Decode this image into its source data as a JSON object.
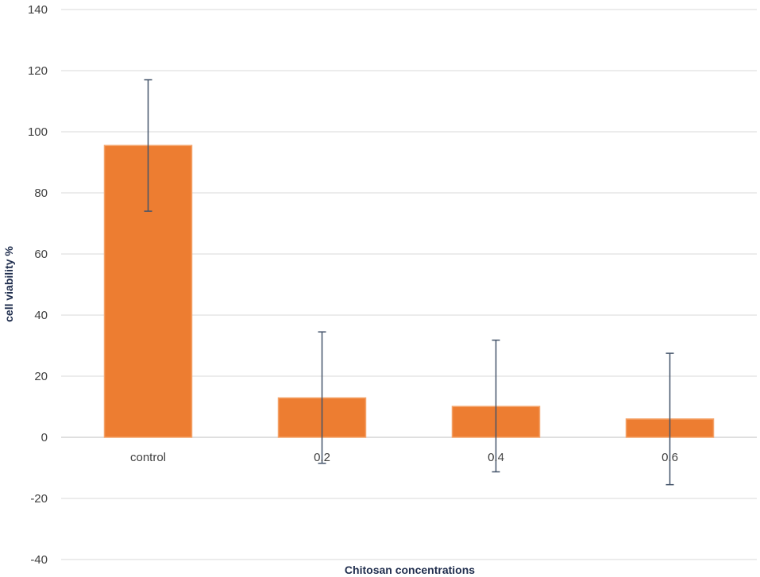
{
  "chart_data": {
    "type": "bar",
    "title": "",
    "xlabel": "Chitosan concentrations",
    "ylabel": "cell viability %",
    "ylim": [
      -40,
      140
    ],
    "yticks": [
      -40,
      -20,
      0,
      20,
      40,
      60,
      80,
      100,
      120,
      140
    ],
    "grid": true,
    "categories": [
      "control",
      "0.2",
      "0.4",
      "0.6"
    ],
    "values": [
      95.5,
      12.9,
      10.1,
      6.0
    ],
    "error_bars": {
      "upper": [
        117,
        34.5,
        31.8,
        27.5
      ],
      "lower": [
        74,
        -8.5,
        -11.3,
        -15.5
      ]
    },
    "colors": {
      "bar": "#ED7D31",
      "bar_edge": "#F4A46B",
      "error_bar": "#44546A",
      "grid": "#D9D9D9"
    }
  }
}
